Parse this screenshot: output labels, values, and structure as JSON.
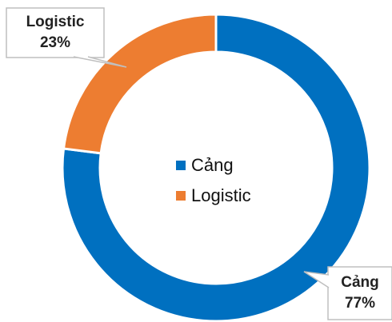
{
  "chart_data": {
    "type": "donut",
    "categories": [
      "Cảng",
      "Logistic"
    ],
    "values": [
      77,
      23
    ],
    "value_labels": [
      "77%",
      "23%"
    ],
    "colors": [
      "#0070c0",
      "#ed7d31"
    ],
    "legend": "center"
  }
}
